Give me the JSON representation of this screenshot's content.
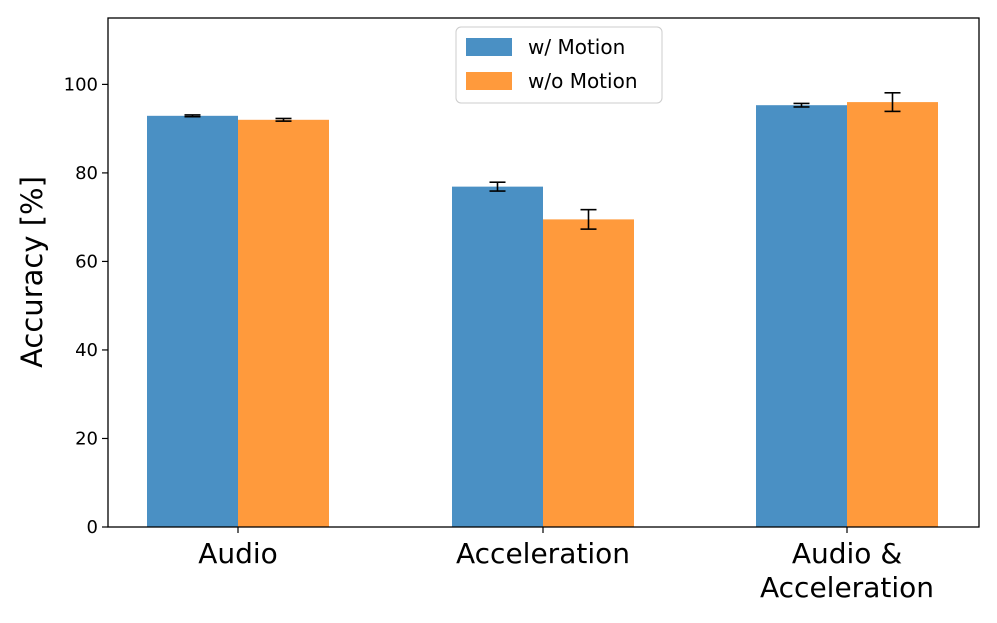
{
  "chart_data": {
    "type": "bar",
    "title": "",
    "xlabel": "",
    "ylabel": "Accuracy [%]",
    "ylim": [
      0,
      115
    ],
    "yticks": [
      0,
      20,
      40,
      60,
      80,
      100
    ],
    "categories": [
      [
        "Audio"
      ],
      [
        "Acceleration"
      ],
      [
        "Audio &",
        "Acceleration"
      ]
    ],
    "series": [
      {
        "name": "w/ Motion",
        "color": "#4a90c4",
        "values": [
          92.9,
          76.9,
          95.3
        ],
        "errors": [
          0.2,
          1.0,
          0.4
        ]
      },
      {
        "name": "w/o Motion",
        "color": "#ff9a3c",
        "values": [
          92.0,
          69.5,
          96.0
        ],
        "errors": [
          0.3,
          2.2,
          2.1
        ]
      }
    ],
    "grid": false,
    "legend": "top-center"
  }
}
